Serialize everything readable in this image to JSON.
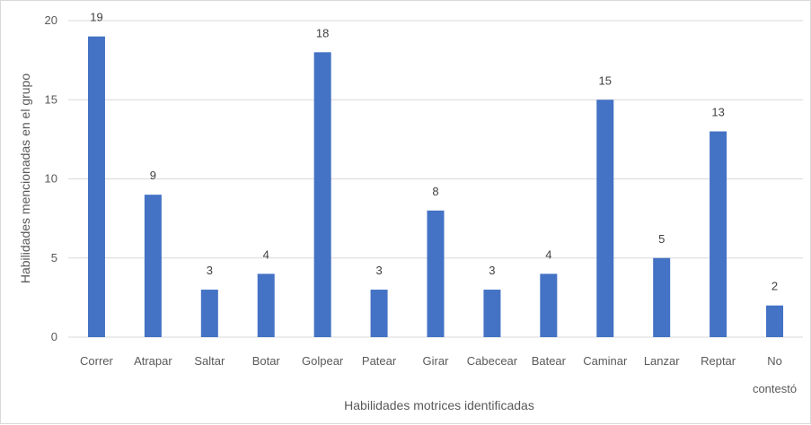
{
  "chart_data": {
    "type": "bar",
    "categories": [
      "Correr",
      "Atrapar",
      "Saltar",
      "Botar",
      "Golpear",
      "Patear",
      "Girar",
      "Cabecear",
      "Batear",
      "Caminar",
      "Lanzar",
      "Reptar",
      "No contestó"
    ],
    "values": [
      19,
      9,
      3,
      4,
      18,
      3,
      8,
      3,
      4,
      15,
      5,
      13,
      2
    ],
    "xlabel": "Habilidades motrices identificadas",
    "ylabel": "Habilidades mencionadas en el grupo",
    "ylim": [
      0,
      20
    ],
    "yticks": [
      0,
      5,
      10,
      15,
      20
    ],
    "grid": true,
    "legend": "none",
    "colors": {
      "bar": "#4472c4",
      "grid": "#d9d9d9",
      "text": "#595959"
    }
  }
}
